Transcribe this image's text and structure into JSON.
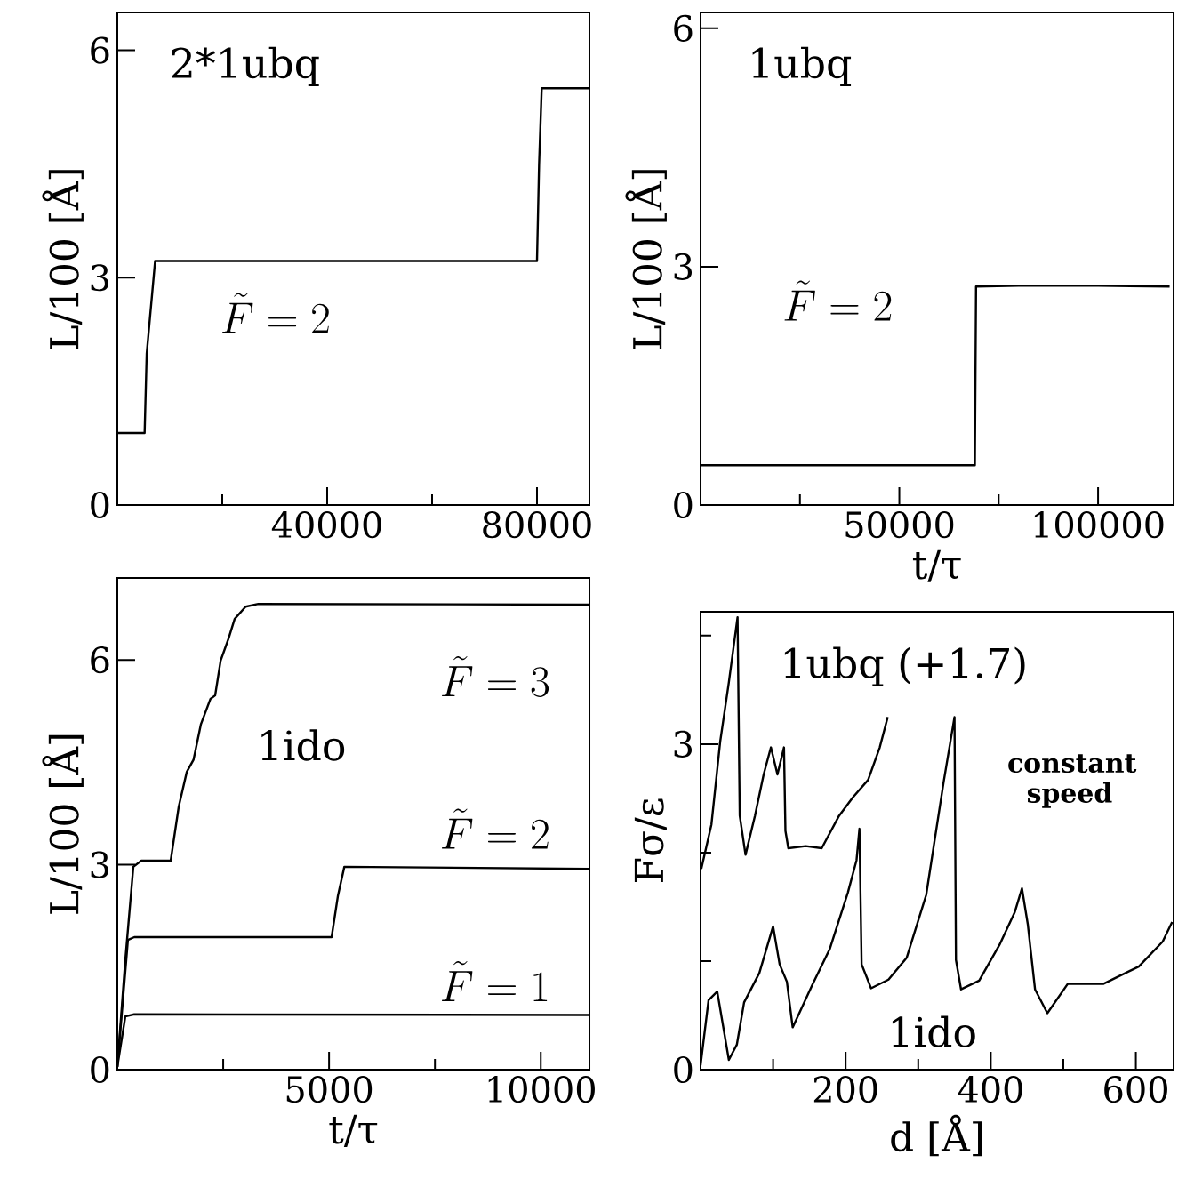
{
  "chart_data": [
    {
      "type": "line",
      "title": "2*1ubq",
      "ylabel": "L/100 [Å]",
      "xlim": [
        0,
        90000
      ],
      "ylim": [
        0,
        6.5
      ],
      "xticks": [
        {
          "value": 20000,
          "label": null
        },
        40000,
        {
          "value": 60000,
          "label": null
        },
        80000
      ],
      "yticks": [
        0,
        3,
        6
      ],
      "series": [
        {
          "name": "\\tilde{F}=2",
          "color": "#000000",
          "x": [
            0,
            5200,
            5600,
            7200,
            80000,
            80400,
            80900,
            90000
          ],
          "values": [
            0.95,
            0.95,
            2.0,
            3.22,
            3.22,
            4.5,
            5.5,
            5.5
          ]
        }
      ]
    },
    {
      "type": "line",
      "title": "1ubq",
      "xlabel": "t/τ",
      "ylabel": "L/100 [Å]",
      "xlim": [
        0,
        119000
      ],
      "ylim": [
        0,
        6.2
      ],
      "xticks": [
        {
          "value": 25000,
          "label": null
        },
        50000,
        {
          "value": 75000,
          "label": null
        },
        100000
      ],
      "yticks": [
        0,
        3,
        6
      ],
      "series": [
        {
          "name": "\\tilde{F}=2",
          "color": "#000000",
          "x": [
            0,
            20000,
            40000,
            60000,
            69000,
            69300,
            80000,
            100000,
            118000
          ],
          "values": [
            0.5,
            0.5,
            0.5,
            0.5,
            0.5,
            2.75,
            2.76,
            2.76,
            2.75
          ]
        }
      ]
    },
    {
      "type": "line",
      "title": "1ido",
      "xlabel": "t/τ",
      "ylabel": "L/100 [Å]",
      "xlim": [
        0,
        11150
      ],
      "ylim": [
        0,
        7.2
      ],
      "xticks": [
        {
          "value": 2500,
          "label": null
        },
        5000,
        {
          "value": 7500,
          "label": null
        },
        10000
      ],
      "yticks": [
        0,
        3,
        6
      ],
      "series": [
        {
          "name": "\\tilde{F}=3",
          "color": "#000000",
          "x": [
            0,
            189,
            378,
            567,
            1260,
            1450,
            1640,
            1800,
            1975,
            2200,
            2310,
            2440,
            2630,
            2770,
            3030,
            3330,
            11150
          ],
          "values": [
            0.04,
            1.61,
            2.97,
            3.06,
            3.06,
            3.85,
            4.36,
            4.54,
            5.06,
            5.43,
            5.48,
            5.99,
            6.32,
            6.6,
            6.78,
            6.82,
            6.81
          ]
        },
        {
          "name": "\\tilde{F}=2",
          "color": "#000000",
          "x": [
            0,
            250,
            400,
            5060,
            5210,
            5360,
            11150
          ],
          "values": [
            0.04,
            1.9,
            1.94,
            1.94,
            2.55,
            2.97,
            2.94
          ]
        },
        {
          "name": "\\tilde{F}=1",
          "color": "#000000",
          "x": [
            0,
            189,
            400,
            11150
          ],
          "values": [
            0.04,
            0.78,
            0.81,
            0.8
          ]
        }
      ]
    },
    {
      "type": "line",
      "xlabel": "d [Å]",
      "ylabel": "Fσ/ε",
      "xlim": [
        0,
        652
      ],
      "ylim": [
        0,
        4.22
      ],
      "xticks": [
        {
          "value": 100,
          "label": null
        },
        200,
        {
          "value": 300,
          "label": null
        },
        400,
        {
          "value": 500,
          "label": null
        },
        600
      ],
      "yticks": [
        0,
        {
          "value": 1,
          "label": null
        },
        {
          "value": 2,
          "label": null
        },
        3,
        {
          "value": 4,
          "label": null
        }
      ],
      "annotations": [
        "constant speed"
      ],
      "series": [
        {
          "name": "1ubq (+1.7)",
          "color": "#000000",
          "x": [
            1,
            15,
            27,
            39,
            51,
            54,
            62,
            75,
            87,
            97,
            106,
            115,
            117,
            121,
            145,
            167,
            191,
            210,
            231,
            247,
            258
          ],
          "values": [
            1.85,
            2.26,
            3.02,
            3.57,
            4.17,
            2.34,
            1.98,
            2.34,
            2.72,
            2.97,
            2.72,
            2.97,
            2.2,
            2.04,
            2.06,
            2.04,
            2.34,
            2.51,
            2.67,
            2.97,
            3.25
          ]
        },
        {
          "name": "1ido",
          "color": "#000000",
          "x": [
            0,
            11,
            23,
            39,
            50,
            60,
            81,
            100,
            109,
            119,
            127,
            154,
            178,
            203,
            215,
            219,
            222,
            235,
            259,
            284,
            311,
            335,
            350,
            352,
            359,
            384,
            412,
            433,
            443,
            451,
            461,
            478,
            506,
            555,
            604,
            637,
            650
          ],
          "values": [
            0.04,
            0.64,
            0.72,
            0.09,
            0.23,
            0.62,
            0.89,
            1.32,
            0.97,
            0.81,
            0.39,
            0.78,
            1.11,
            1.63,
            1.93,
            2.22,
            0.97,
            0.75,
            0.83,
            1.03,
            1.61,
            2.65,
            3.25,
            1.01,
            0.74,
            0.82,
            1.15,
            1.45,
            1.67,
            1.34,
            0.74,
            0.52,
            0.79,
            0.79,
            0.95,
            1.18,
            1.36
          ]
        }
      ]
    }
  ]
}
